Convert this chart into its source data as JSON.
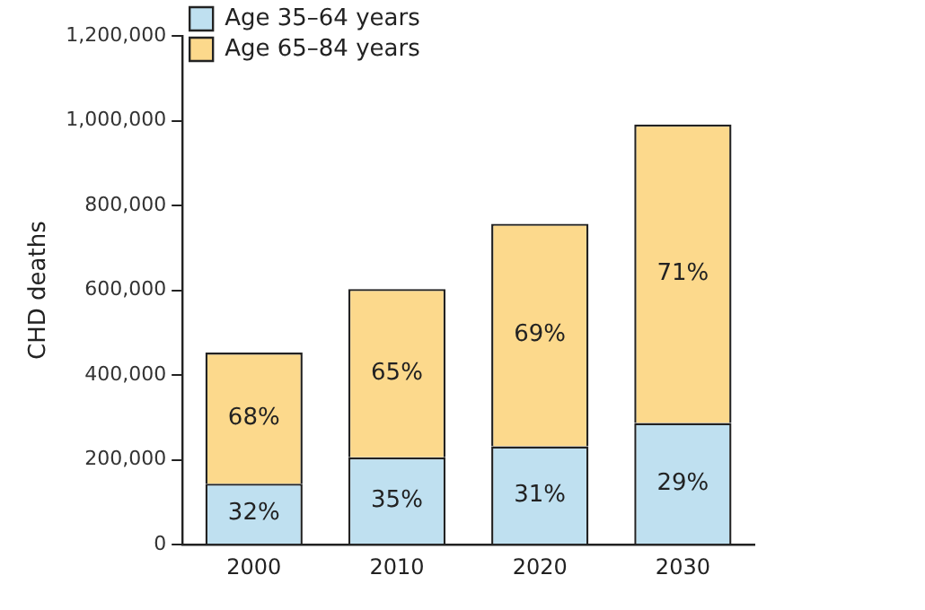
{
  "chart_data": {
    "type": "bar",
    "stacked": true,
    "ylabel": "CHD deaths",
    "categories": [
      "2000",
      "2010",
      "2020",
      "2030"
    ],
    "series": [
      {
        "name": "Age 35–64 years",
        "color": "#bfe0f0",
        "values": [
          144000,
          206000,
          232000,
          287000
        ]
      },
      {
        "name": "Age 65–84 years",
        "color": "#fcd98c",
        "values": [
          309000,
          397000,
          525000,
          704000
        ]
      }
    ],
    "annotations": [
      "32%",
      "68%",
      "35%",
      "65%",
      "31%",
      "69%",
      "29%",
      "71%"
    ],
    "ylim": [
      0,
      1200000
    ],
    "yticks": [
      {
        "value": 0,
        "label": "0"
      },
      {
        "value": 200000,
        "label": "200,000"
      },
      {
        "value": 400000,
        "label": "400,000"
      },
      {
        "value": 600000,
        "label": "600,000"
      },
      {
        "value": 800000,
        "label": "800,000"
      },
      {
        "value": 1000000,
        "label": "1,000,000"
      },
      {
        "value": 1200000,
        "label": "1,200,000"
      }
    ],
    "grid": false,
    "legend": "top left"
  }
}
